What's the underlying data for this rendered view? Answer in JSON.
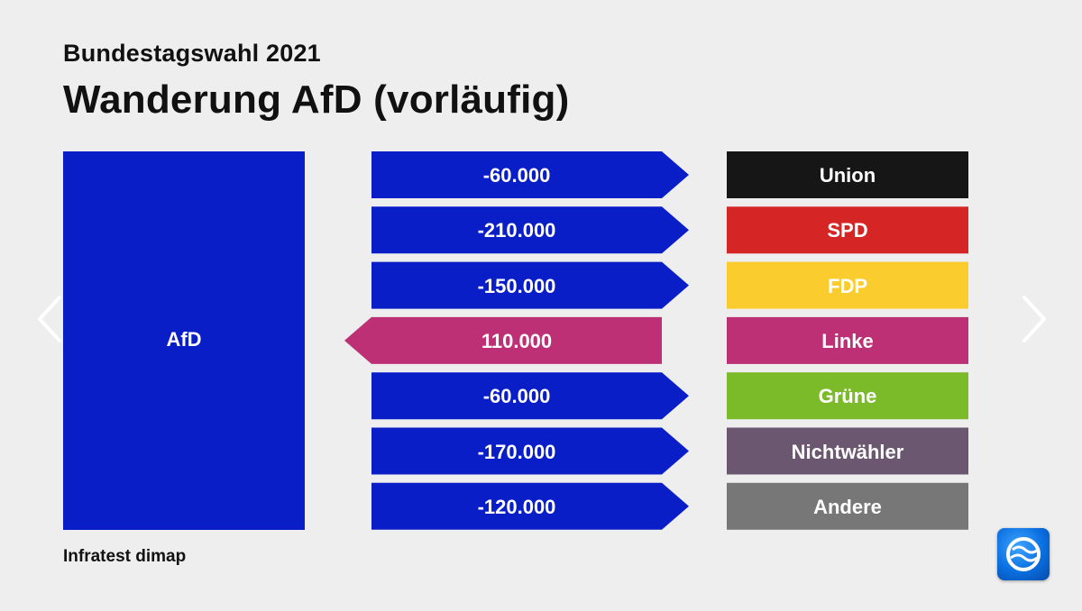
{
  "header": {
    "supertitle": "Bundestagswahl 2021",
    "title": "Wanderung AfD (vorläufig)"
  },
  "footer": {
    "source": "Infratest dimap"
  },
  "logo": {
    "icon": "ard-tagesschau-logo-icon"
  },
  "nav": {
    "prev_icon": "chevron-left-icon",
    "next_icon": "chevron-right-icon"
  },
  "chart_data": {
    "type": "table",
    "main_party": {
      "name": "AfD",
      "color": "#0a1ec8"
    },
    "flows": [
      {
        "label": "-60.000",
        "value": -60000,
        "party": "Union",
        "party_color": "#161616",
        "flow_color": "#0a1ec8"
      },
      {
        "label": "-210.000",
        "value": -210000,
        "party": "SPD",
        "party_color": "#d52525",
        "flow_color": "#0a1ec8"
      },
      {
        "label": "-150.000",
        "value": -150000,
        "party": "FDP",
        "party_color": "#fbcc2e",
        "flow_color": "#0a1ec8"
      },
      {
        "label": "110.000",
        "value": 110000,
        "party": "Linke",
        "party_color": "#bd3075",
        "flow_color": "#bd3075"
      },
      {
        "label": "-60.000",
        "value": -60000,
        "party": "Grüne",
        "party_color": "#7bbb2a",
        "flow_color": "#0a1ec8"
      },
      {
        "label": "-170.000",
        "value": -170000,
        "party": "Nichtwähler",
        "party_color": "#6b5870",
        "flow_color": "#0a1ec8"
      },
      {
        "label": "-120.000",
        "value": -120000,
        "party": "Andere",
        "party_color": "#777777",
        "flow_color": "#0a1ec8"
      }
    ]
  }
}
